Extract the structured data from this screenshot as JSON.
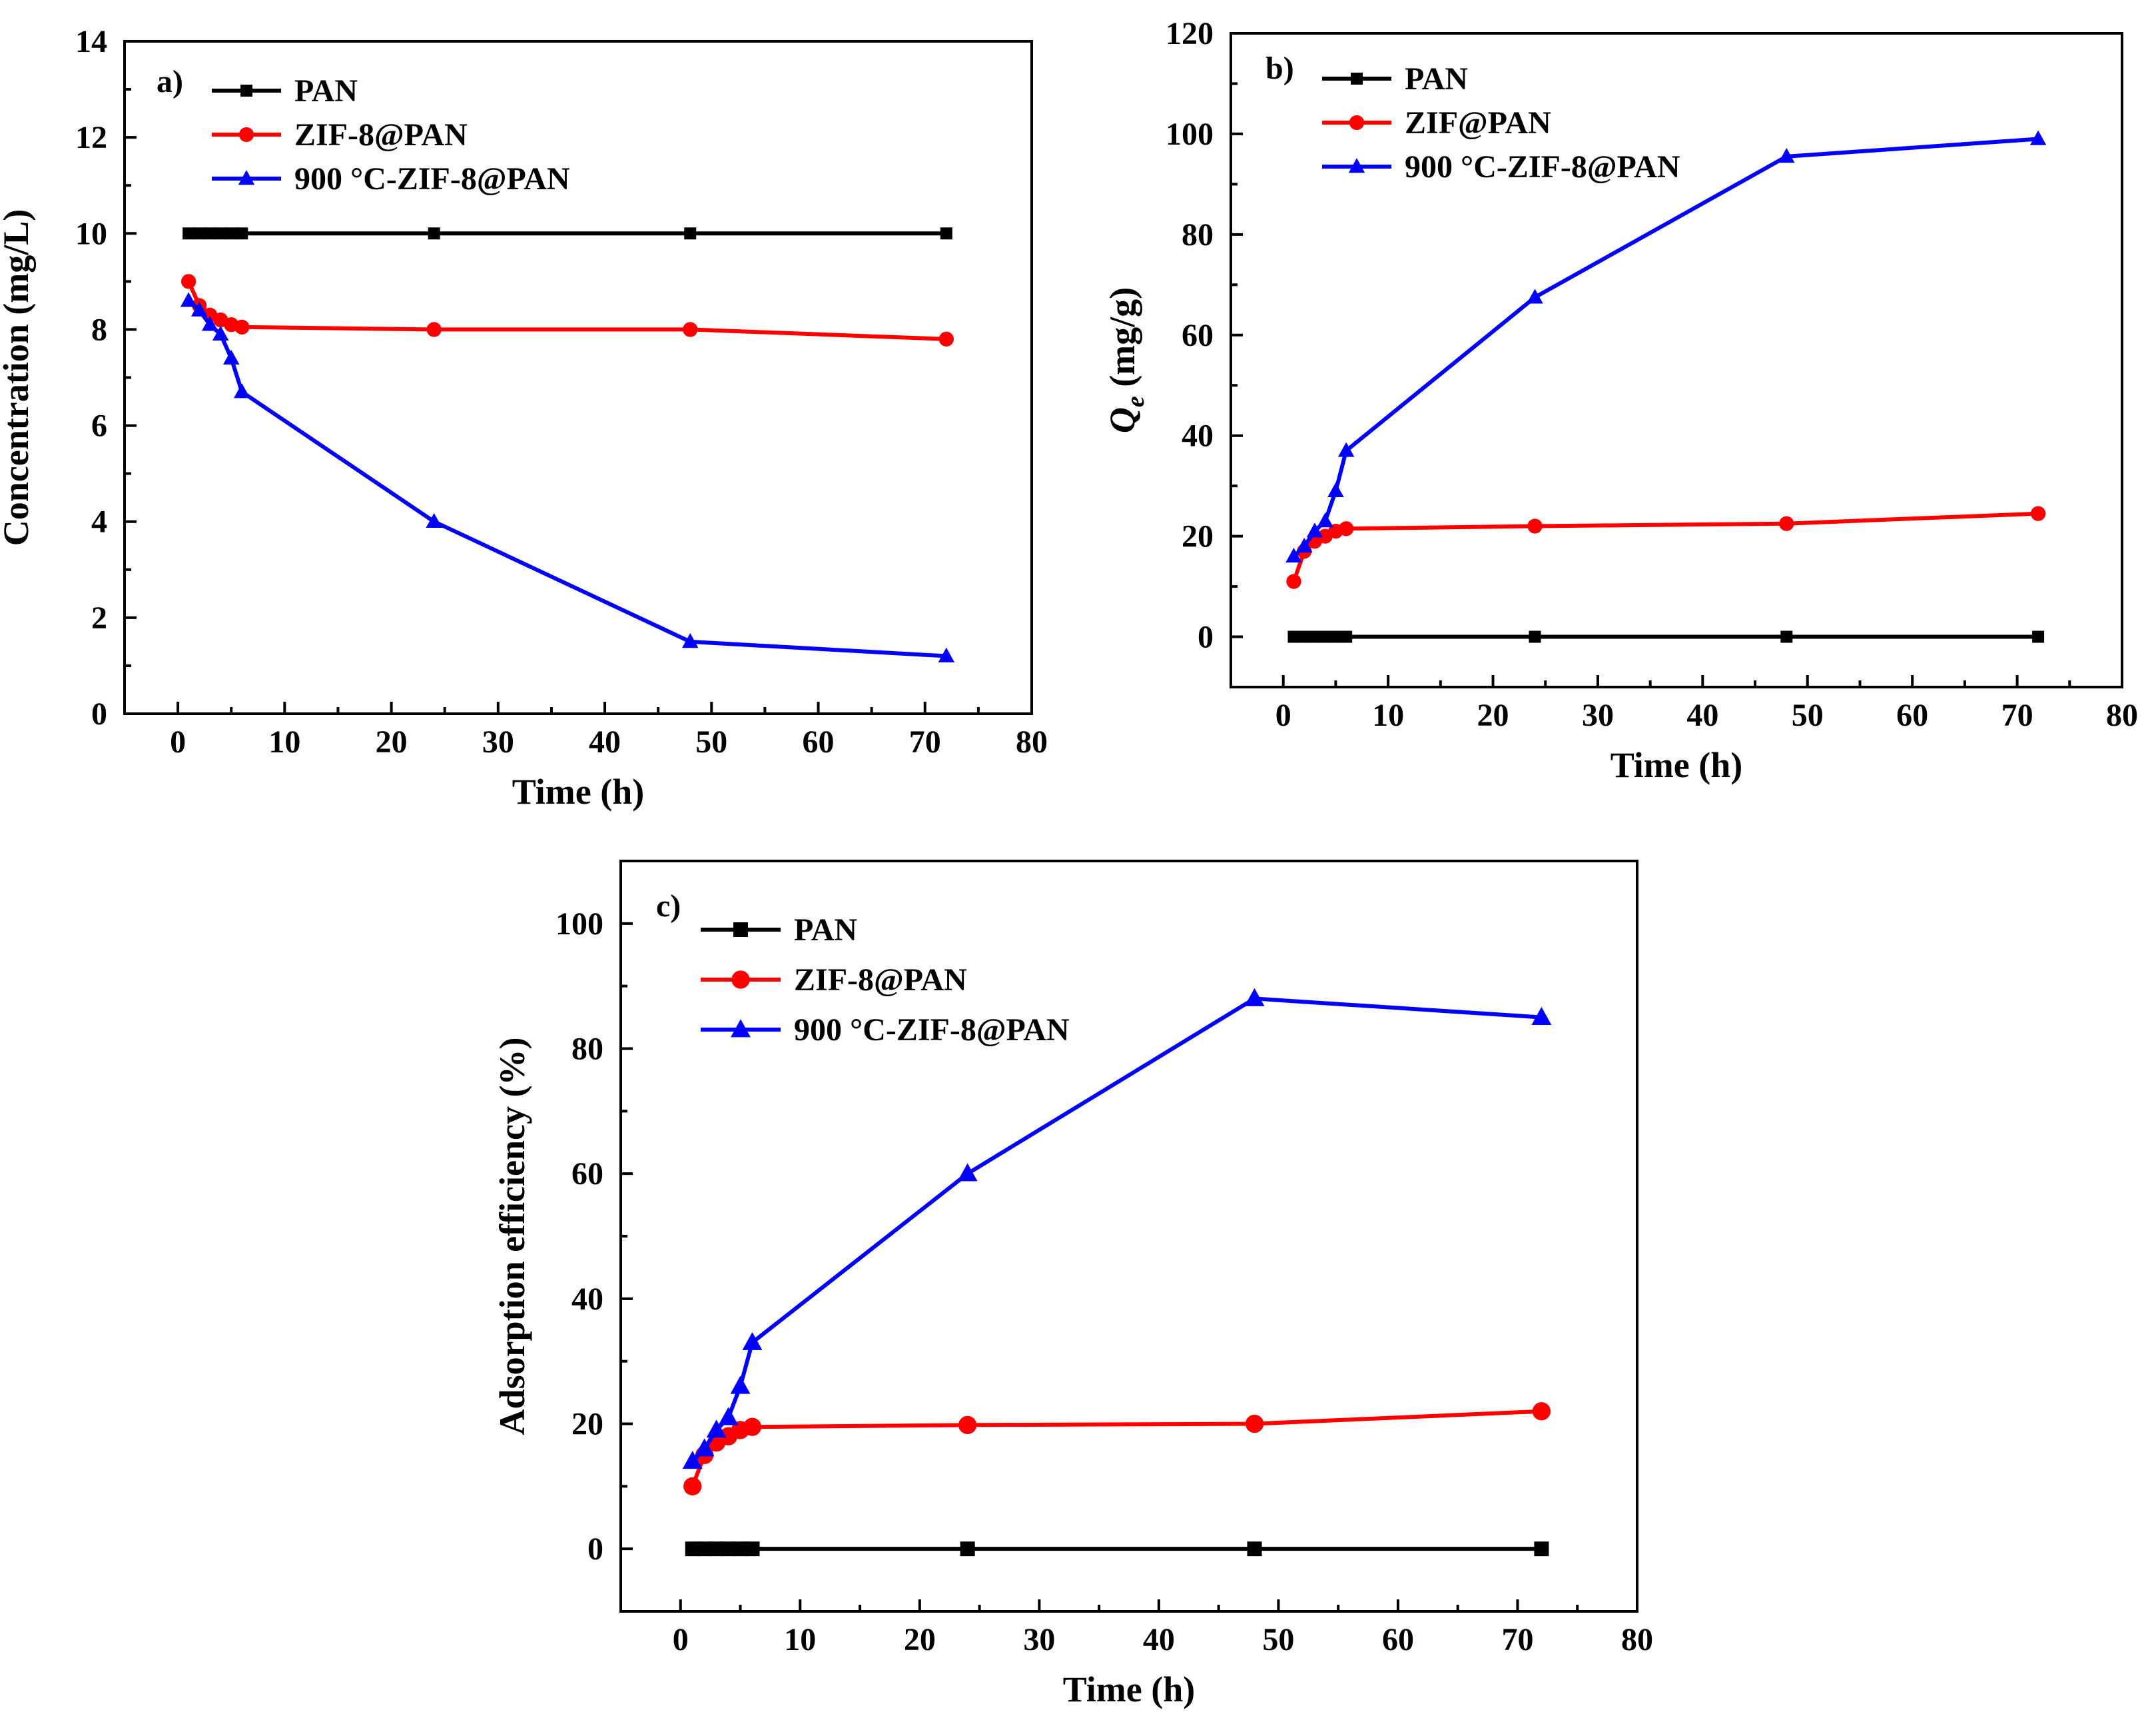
{
  "chart_data": [
    {
      "panel_label": "a)",
      "type": "line",
      "xlabel": "Time (h)",
      "ylabel": "Concentration (mg/L)",
      "ylabel_italic_prefix": "",
      "ylabel_subscript": "",
      "xlim": [
        -5,
        80
      ],
      "ylim": [
        0,
        14
      ],
      "xticks": [
        0,
        10,
        20,
        30,
        40,
        50,
        60,
        70,
        80
      ],
      "yticks": [
        0,
        2,
        4,
        6,
        8,
        10,
        12,
        14
      ],
      "legend_position": "top-left",
      "series": [
        {
          "name": "PAN",
          "color": "#000000",
          "marker": "square",
          "x": [
            1,
            2,
            3,
            4,
            5,
            6,
            24,
            48,
            72
          ],
          "y": [
            10,
            10,
            10,
            10,
            10,
            10,
            10,
            10,
            10
          ]
        },
        {
          "name": "ZIF-8@PAN",
          "color": "#ff0000",
          "marker": "circle",
          "x": [
            1,
            2,
            3,
            4,
            5,
            6,
            24,
            48,
            72
          ],
          "y": [
            9.0,
            8.5,
            8.3,
            8.2,
            8.1,
            8.05,
            8.0,
            8.0,
            7.8
          ]
        },
        {
          "name": "900 °C-ZIF-8@PAN",
          "color": "#0000ff",
          "marker": "triangle",
          "x": [
            1,
            2,
            3,
            4,
            5,
            6,
            24,
            48,
            72
          ],
          "y": [
            8.6,
            8.4,
            8.1,
            7.9,
            7.4,
            6.7,
            4.0,
            1.5,
            1.2
          ]
        }
      ]
    },
    {
      "panel_label": "b)",
      "type": "line",
      "xlabel": "Time (h)",
      "ylabel": " (mg/g)",
      "ylabel_italic_prefix": "Q",
      "ylabel_subscript": "e",
      "xlim": [
        -5,
        80
      ],
      "ylim": [
        -10,
        120
      ],
      "xticks": [
        0,
        10,
        20,
        30,
        40,
        50,
        60,
        70,
        80
      ],
      "yticks": [
        0,
        20,
        40,
        60,
        80,
        100,
        120
      ],
      "legend_position": "top-left",
      "series": [
        {
          "name": "PAN",
          "color": "#000000",
          "marker": "square",
          "x": [
            1,
            2,
            3,
            4,
            5,
            6,
            24,
            48,
            72
          ],
          "y": [
            0,
            0,
            0,
            0,
            0,
            0,
            0,
            0,
            0
          ]
        },
        {
          "name": "ZIF@PAN",
          "color": "#ff0000",
          "marker": "circle",
          "x": [
            1,
            2,
            3,
            4,
            5,
            6,
            24,
            48,
            72
          ],
          "y": [
            11,
            17,
            19,
            20,
            21,
            21.5,
            22,
            22.5,
            24.5
          ]
        },
        {
          "name": "900 °C-ZIF-8@PAN",
          "color": "#0000ff",
          "marker": "triangle",
          "x": [
            1,
            2,
            3,
            4,
            5,
            6,
            24,
            48,
            72
          ],
          "y": [
            16,
            18,
            21,
            23,
            29,
            37,
            67.5,
            95.5,
            99
          ]
        }
      ]
    },
    {
      "panel_label": "c)",
      "type": "line",
      "xlabel": "Time (h)",
      "ylabel": "Adsorption efficiency (%)",
      "ylabel_italic_prefix": "",
      "ylabel_subscript": "",
      "xlim": [
        -5,
        80
      ],
      "ylim": [
        -10,
        110
      ],
      "xticks": [
        0,
        10,
        20,
        30,
        40,
        50,
        60,
        70,
        80
      ],
      "yticks": [
        0,
        20,
        40,
        60,
        80,
        100
      ],
      "legend_position": "top-left",
      "series": [
        {
          "name": "PAN",
          "color": "#000000",
          "marker": "square",
          "x": [
            1,
            2,
            3,
            4,
            5,
            6,
            24,
            48,
            72
          ],
          "y": [
            0,
            0,
            0,
            0,
            0,
            0,
            0,
            0,
            0
          ]
        },
        {
          "name": "ZIF-8@PAN",
          "color": "#ff0000",
          "marker": "circle",
          "x": [
            1,
            2,
            3,
            4,
            5,
            6,
            24,
            48,
            72
          ],
          "y": [
            10,
            15,
            17,
            18,
            19,
            19.5,
            19.8,
            20,
            22
          ]
        },
        {
          "name": "900 °C-ZIF-8@PAN",
          "color": "#0000ff",
          "marker": "triangle",
          "x": [
            1,
            2,
            3,
            4,
            5,
            6,
            24,
            48,
            72
          ],
          "y": [
            14,
            16,
            19,
            21,
            26,
            33,
            60,
            88,
            85
          ]
        }
      ]
    }
  ]
}
